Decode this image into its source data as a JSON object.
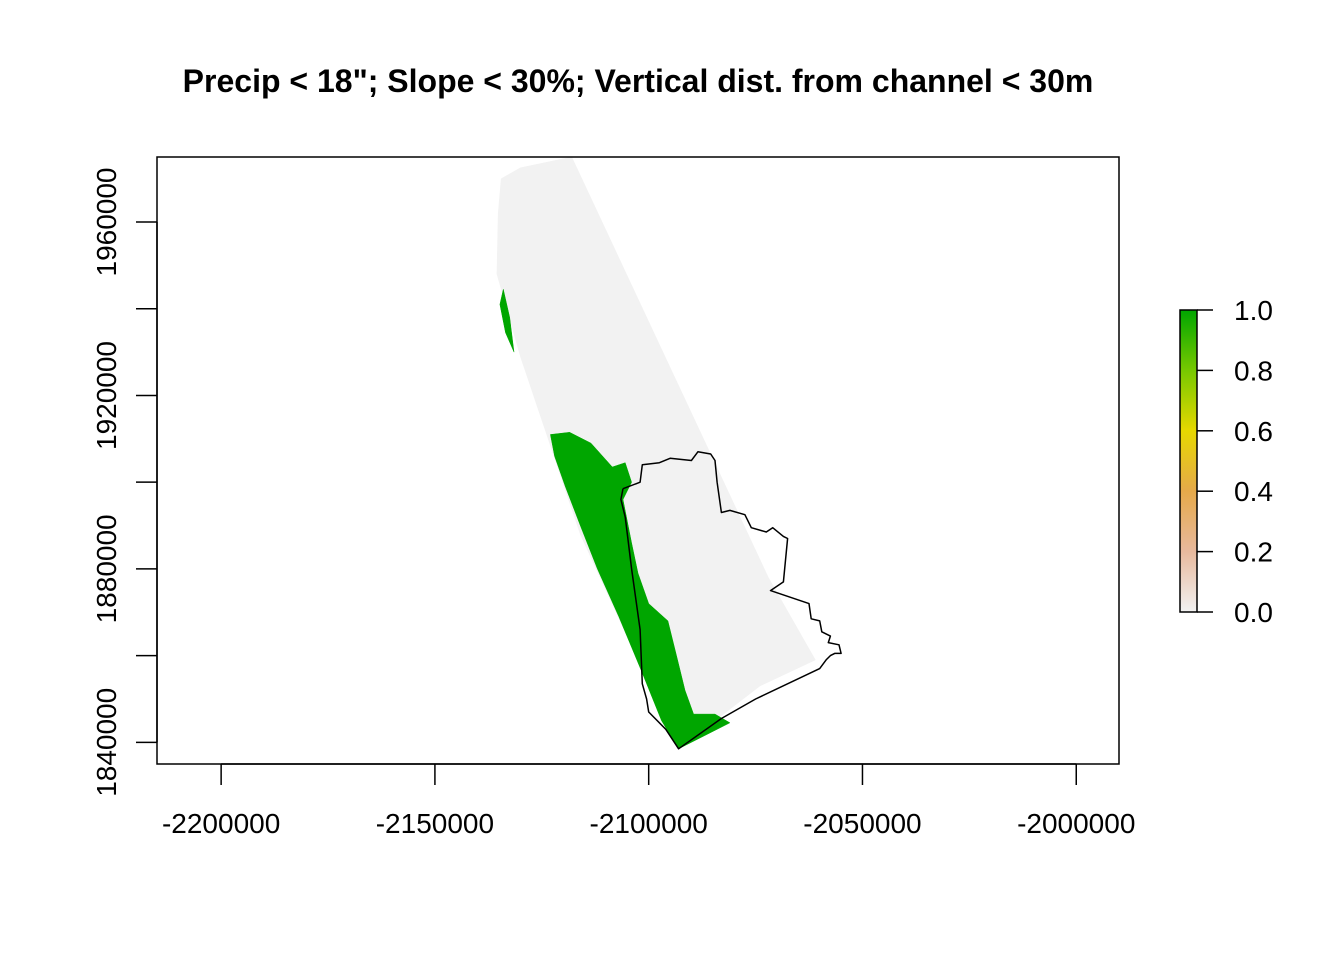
{
  "chart_data": {
    "type": "heatmap",
    "title": "Precip < 18\"; Slope < 30%; Vertical dist. from channel < 30m",
    "xlabel": "",
    "ylabel": "",
    "xlim": [
      -2215000,
      -1990000
    ],
    "ylim": [
      1835000,
      1975000
    ],
    "x_ticks": [
      {
        "value": -2200000,
        "label": "-2200000"
      },
      {
        "value": -2150000,
        "label": "-2150000"
      },
      {
        "value": -2100000,
        "label": "-2100000"
      },
      {
        "value": -2050000,
        "label": "-2050000"
      },
      {
        "value": -2000000,
        "label": "-2000000"
      }
    ],
    "y_ticks": [
      {
        "value": 1840000,
        "label": "1840000",
        "show_label": true
      },
      {
        "value": 1860000,
        "label": "",
        "show_label": false
      },
      {
        "value": 1880000,
        "label": "1880000",
        "show_label": true
      },
      {
        "value": 1900000,
        "label": "",
        "show_label": false
      },
      {
        "value": 1920000,
        "label": "1920000",
        "show_label": true
      },
      {
        "value": 1940000,
        "label": "",
        "show_label": false
      },
      {
        "value": 1960000,
        "label": "1960000",
        "show_label": true
      }
    ],
    "legend": {
      "position": "right",
      "min": 0.0,
      "max": 1.0,
      "tick_labels": [
        "0.0",
        "0.2",
        "0.4",
        "0.6",
        "0.8",
        "1.0"
      ],
      "color_stops": [
        {
          "value": 0.0,
          "color": "#f2f2f2"
        },
        {
          "value": 0.2,
          "color": "#e8b99d"
        },
        {
          "value": 0.4,
          "color": "#e5a94a"
        },
        {
          "value": 0.6,
          "color": "#e6d800"
        },
        {
          "value": 0.8,
          "color": "#77c800"
        },
        {
          "value": 1.0,
          "color": "#00a600"
        }
      ]
    },
    "layers": [
      {
        "name": "study-region",
        "value": 0,
        "color": "#f2f2f2",
        "polygon": [
          [
            -2134500,
            1970000
          ],
          [
            -2130000,
            1972500
          ],
          [
            -2118000,
            1975000
          ],
          [
            -2072000,
            1878000
          ],
          [
            -2061000,
            1859000
          ],
          [
            -2074000,
            1853000
          ],
          [
            -2093000,
            1838500
          ],
          [
            -2116000,
            1888000
          ],
          [
            -2130000,
            1929000
          ],
          [
            -2135500,
            1948000
          ],
          [
            -2135200,
            1962000
          ]
        ]
      },
      {
        "name": "suitable-area-north",
        "value": 1,
        "color": "#00a600",
        "polygon": [
          [
            -2134000,
            1944500
          ],
          [
            -2132500,
            1938000
          ],
          [
            -2131500,
            1930000
          ],
          [
            -2133500,
            1934500
          ],
          [
            -2134800,
            1941000
          ]
        ]
      },
      {
        "name": "suitable-area-south",
        "value": 1,
        "color": "#00a600",
        "polygon": [
          [
            -2123000,
            1911000
          ],
          [
            -2118500,
            1911500
          ],
          [
            -2113500,
            1909000
          ],
          [
            -2108500,
            1903500
          ],
          [
            -2105500,
            1904500
          ],
          [
            -2104000,
            1900000
          ],
          [
            -2106000,
            1896000
          ],
          [
            -2104000,
            1886000
          ],
          [
            -2102500,
            1879000
          ],
          [
            -2100000,
            1872000
          ],
          [
            -2095500,
            1868000
          ],
          [
            -2093500,
            1860000
          ],
          [
            -2091500,
            1852000
          ],
          [
            -2089500,
            1846500
          ],
          [
            -2084500,
            1846500
          ],
          [
            -2081000,
            1844500
          ],
          [
            -2087000,
            1841500
          ],
          [
            -2093000,
            1838500
          ],
          [
            -2097000,
            1845000
          ],
          [
            -2101500,
            1856000
          ],
          [
            -2107000,
            1869000
          ],
          [
            -2112000,
            1880000
          ],
          [
            -2116000,
            1890000
          ],
          [
            -2119500,
            1899000
          ],
          [
            -2122000,
            1906000
          ]
        ]
      }
    ],
    "boundary_outline": [
      [
        -2106000,
        1898500
      ],
      [
        -2102000,
        1900000
      ],
      [
        -2101500,
        1904000
      ],
      [
        -2097500,
        1904500
      ],
      [
        -2095000,
        1905500
      ],
      [
        -2090000,
        1905000
      ],
      [
        -2088500,
        1907000
      ],
      [
        -2085500,
        1906500
      ],
      [
        -2084500,
        1905000
      ],
      [
        -2084000,
        1900000
      ],
      [
        -2083000,
        1893000
      ],
      [
        -2081000,
        1893500
      ],
      [
        -2077500,
        1892500
      ],
      [
        -2076000,
        1889500
      ],
      [
        -2072500,
        1888500
      ],
      [
        -2071000,
        1889500
      ],
      [
        -2068500,
        1887500
      ],
      [
        -2067500,
        1887000
      ],
      [
        -2068000,
        1882000
      ],
      [
        -2068500,
        1877000
      ],
      [
        -2071500,
        1875000
      ],
      [
        -2062500,
        1872000
      ],
      [
        -2062000,
        1868500
      ],
      [
        -2060000,
        1868000
      ],
      [
        -2059500,
        1865500
      ],
      [
        -2057500,
        1864500
      ],
      [
        -2058000,
        1863000
      ],
      [
        -2055500,
        1862500
      ],
      [
        -2055000,
        1860500
      ],
      [
        -2056500,
        1860500
      ],
      [
        -2057500,
        1860000
      ],
      [
        -2058500,
        1859000
      ],
      [
        -2060000,
        1857000
      ],
      [
        -2075000,
        1850000
      ],
      [
        -2083000,
        1845500
      ],
      [
        -2093000,
        1838500
      ],
      [
        -2096000,
        1843000
      ],
      [
        -2100000,
        1847000
      ],
      [
        -2100500,
        1850000
      ],
      [
        -2101500,
        1853500
      ],
      [
        -2102000,
        1866000
      ],
      [
        -2104000,
        1880000
      ],
      [
        -2105500,
        1892000
      ],
      [
        -2106500,
        1896000
      ],
      [
        -2106000,
        1898500
      ]
    ]
  }
}
